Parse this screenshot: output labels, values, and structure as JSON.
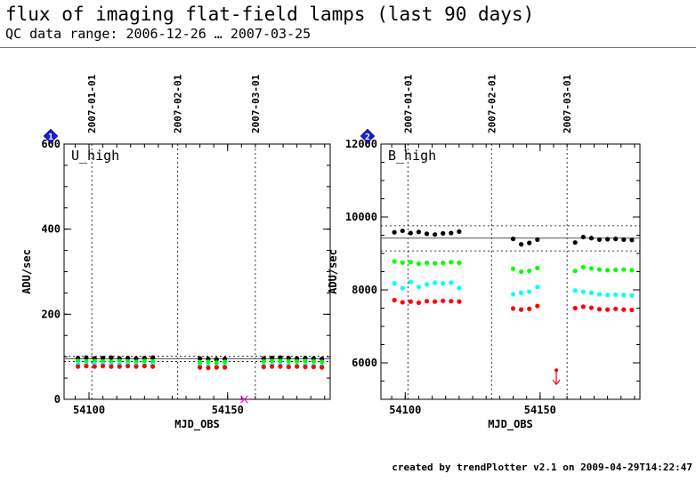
{
  "title": "flux of imaging flat-field lamps (last 90 days)",
  "subtitle": "QC data range: 2006-12-26 … 2007-03-25",
  "footer": "created by trendPlotter v2.1 on 2009-04-29T14:22:47",
  "chart_data": [
    {
      "type": "scatter",
      "panel_number": "1",
      "label": "U_high",
      "xlabel": "MJD_OBS",
      "ylabel": "ADU/sec",
      "xlim": [
        54091,
        54187
      ],
      "ylim": [
        0,
        600
      ],
      "xticks": [
        54100,
        54150
      ],
      "yticks": [
        0,
        200,
        400,
        600
      ],
      "date_markers": [
        {
          "mjd": 54101,
          "label": "2007-01-01"
        },
        {
          "mjd": 54132,
          "label": "2007-02-01"
        },
        {
          "mjd": 54160,
          "label": "2007-03-01"
        }
      ],
      "ref_lines": {
        "mean": 95,
        "upper": 101,
        "lower": 89
      },
      "outliers": [
        {
          "x": 54156,
          "y": 0,
          "color": "#ff00ff",
          "marker": "x"
        }
      ],
      "series": [
        {
          "color": "#000000",
          "x": [
            54096,
            54099,
            54102,
            54105,
            54108,
            54111,
            54114,
            54117,
            54120,
            54123,
            54140,
            54143,
            54146,
            54149,
            54163,
            54166,
            54169,
            54172,
            54175,
            54178,
            54181,
            54184
          ],
          "y": [
            97,
            98,
            96,
            97,
            98,
            96,
            97,
            96,
            97,
            98,
            96,
            95,
            94,
            95,
            96,
            97,
            98,
            97,
            96,
            97,
            96,
            95
          ]
        },
        {
          "color": "#00ff00",
          "x": [
            54096,
            54099,
            54102,
            54105,
            54108,
            54111,
            54114,
            54117,
            54120,
            54123,
            54140,
            54143,
            54146,
            54149,
            54163,
            54166,
            54169,
            54172,
            54175,
            54178,
            54181,
            54184
          ],
          "y": [
            90,
            89,
            90,
            89,
            88,
            90,
            89,
            88,
            90,
            89,
            87,
            88,
            86,
            88,
            89,
            90,
            90,
            89,
            89,
            90,
            89,
            88
          ]
        },
        {
          "color": "#00ffff",
          "x": [
            54096,
            54099,
            54102,
            54105,
            54108,
            54111,
            54114,
            54117,
            54120,
            54123,
            54140,
            54143,
            54146,
            54149,
            54163,
            54166,
            54169,
            54172,
            54175,
            54178,
            54181,
            54184
          ],
          "y": [
            82,
            81,
            83,
            82,
            81,
            82,
            82,
            81,
            80,
            81,
            78,
            78,
            77,
            78,
            79,
            80,
            80,
            79,
            79,
            80,
            79,
            78
          ]
        },
        {
          "color": "#ff0000",
          "x": [
            54096,
            54099,
            54102,
            54105,
            54108,
            54111,
            54114,
            54117,
            54120,
            54123,
            54140,
            54143,
            54146,
            54149,
            54163,
            54166,
            54169,
            54172,
            54175,
            54178,
            54181,
            54184
          ],
          "y": [
            77,
            78,
            77,
            78,
            77,
            77,
            78,
            77,
            78,
            77,
            75,
            74,
            75,
            75,
            76,
            77,
            77,
            76,
            77,
            76,
            76,
            75
          ]
        }
      ]
    },
    {
      "type": "scatter",
      "panel_number": "2",
      "label": "B_high",
      "xlabel": "MJD_OBS",
      "ylabel": "ADU/sec",
      "xlim": [
        54091,
        54187
      ],
      "ylim": [
        5000,
        12000
      ],
      "xticks": [
        54100,
        54150
      ],
      "yticks": [
        6000,
        8000,
        10000,
        12000
      ],
      "date_markers": [
        {
          "mjd": 54101,
          "label": "2007-01-01"
        },
        {
          "mjd": 54132,
          "label": "2007-02-01"
        },
        {
          "mjd": 54160,
          "label": "2007-03-01"
        }
      ],
      "ref_lines": {
        "mean": 9420,
        "upper": 9760,
        "lower": 9070
      },
      "outliers": [
        {
          "x": 54156,
          "y": 5800,
          "color": "#ff0000",
          "marker": "down-arrow"
        }
      ],
      "series": [
        {
          "color": "#000000",
          "x": [
            54096,
            54099,
            54102,
            54105,
            54108,
            54111,
            54114,
            54117,
            54120,
            54140,
            54143,
            54146,
            54149,
            54163,
            54166,
            54169,
            54172,
            54175,
            54178,
            54181,
            54184
          ],
          "y": [
            9580,
            9620,
            9560,
            9590,
            9540,
            9520,
            9550,
            9560,
            9600,
            9400,
            9250,
            9290,
            9380,
            9300,
            9450,
            9420,
            9380,
            9390,
            9400,
            9380,
            9370
          ]
        },
        {
          "color": "#00ff00",
          "x": [
            54096,
            54099,
            54102,
            54105,
            54108,
            54111,
            54114,
            54117,
            54120,
            54140,
            54143,
            54146,
            54149,
            54163,
            54166,
            54169,
            54172,
            54175,
            54178,
            54181,
            54184
          ],
          "y": [
            8780,
            8750,
            8760,
            8720,
            8740,
            8730,
            8740,
            8760,
            8740,
            8580,
            8500,
            8520,
            8600,
            8520,
            8620,
            8590,
            8560,
            8540,
            8550,
            8560,
            8540
          ]
        },
        {
          "color": "#00ffff",
          "x": [
            54096,
            54099,
            54102,
            54105,
            54108,
            54111,
            54114,
            54117,
            54120,
            54140,
            54143,
            54146,
            54149,
            54163,
            54166,
            54169,
            54172,
            54175,
            54178,
            54181,
            54184
          ],
          "y": [
            8180,
            8050,
            8220,
            8080,
            8150,
            8200,
            8180,
            8200,
            8050,
            7880,
            7920,
            7950,
            8080,
            7980,
            7950,
            7920,
            7880,
            7860,
            7870,
            7860,
            7850
          ]
        },
        {
          "color": "#ff0000",
          "x": [
            54096,
            54099,
            54102,
            54105,
            54108,
            54111,
            54114,
            54117,
            54120,
            54140,
            54143,
            54146,
            54149,
            54163,
            54166,
            54169,
            54172,
            54175,
            54178,
            54181,
            54184
          ],
          "y": [
            7720,
            7660,
            7680,
            7650,
            7690,
            7680,
            7700,
            7690,
            7680,
            7490,
            7460,
            7480,
            7560,
            7500,
            7540,
            7510,
            7470,
            7460,
            7480,
            7460,
            7450
          ]
        }
      ]
    }
  ]
}
